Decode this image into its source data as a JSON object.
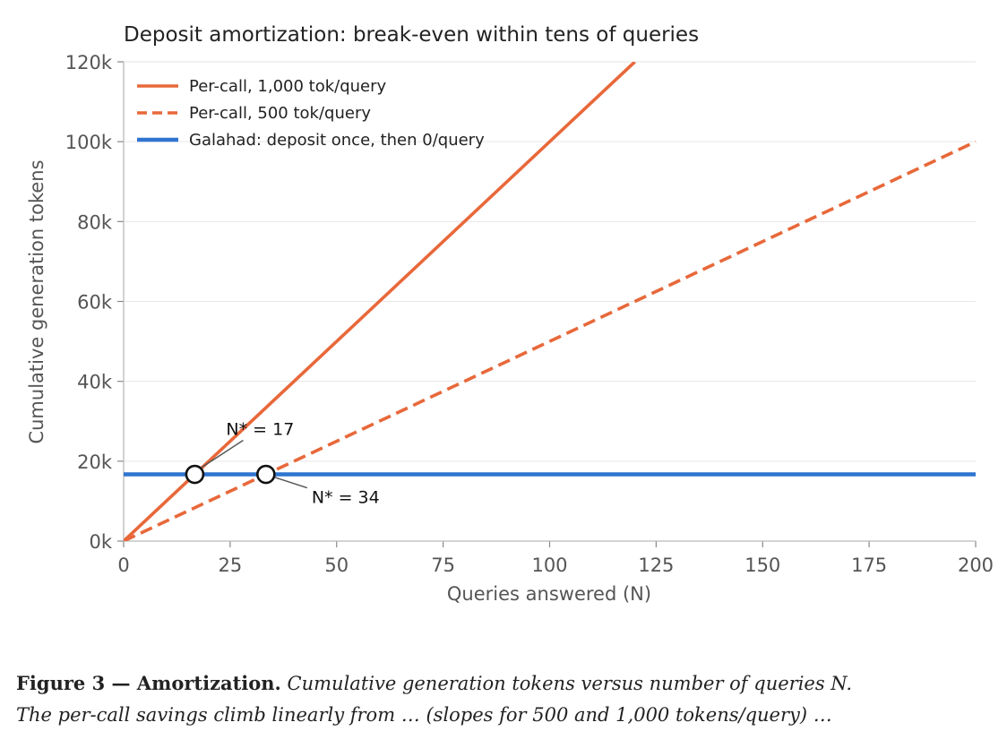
{
  "chart_data": {
    "type": "line",
    "title": "Deposit amortization: break-even within tens of queries",
    "xlabel": "Queries answered (N)",
    "ylabel": "Cumulative generation tokens",
    "xlim": [
      0,
      200
    ],
    "ylim": [
      0,
      120000
    ],
    "x_ticks": [
      0,
      25,
      50,
      75,
      100,
      125,
      150,
      175,
      200
    ],
    "y_ticks": [
      0,
      20000,
      40000,
      60000,
      80000,
      100000,
      120000
    ],
    "x_tick_labels": [
      "0",
      "25",
      "50",
      "75",
      "100",
      "125",
      "150",
      "175",
      "200"
    ],
    "y_tick_labels": [
      "0k",
      "20k",
      "40k",
      "60k",
      "80k",
      "100k",
      "120k"
    ],
    "grid": "horizontal",
    "legend_position": "top-left",
    "series": [
      {
        "name": "Per-call, 1,000 tok/query",
        "color": "#e8683a",
        "style": "solid",
        "x": [
          0,
          120
        ],
        "y": [
          0,
          120000
        ]
      },
      {
        "name": "Per-call, 500 tok/query",
        "color": "#e8683a",
        "style": "dashed",
        "x": [
          0,
          200
        ],
        "y": [
          0,
          100000
        ]
      },
      {
        "name": "Galahad: deposit once, then 0/query",
        "color": "#2f74d0",
        "style": "solid",
        "x": [
          0,
          200
        ],
        "y": [
          16700,
          16700
        ]
      }
    ],
    "markers": [
      {
        "x": 16.7,
        "y": 16700
      },
      {
        "x": 33.4,
        "y": 16700
      }
    ],
    "annotations": [
      {
        "text": "N* = 17",
        "x": 16.7,
        "y": 16700
      },
      {
        "text": "N* = 34",
        "x": 33.4,
        "y": 16700
      }
    ]
  },
  "caption": {
    "label": "Figure 3 — Amortization.",
    "text": " Cumulative generation tokens versus number of queries N.",
    "text2": "The per-call savings climb linearly from … (slopes for 500 and 1,000 tokens/query) …"
  }
}
